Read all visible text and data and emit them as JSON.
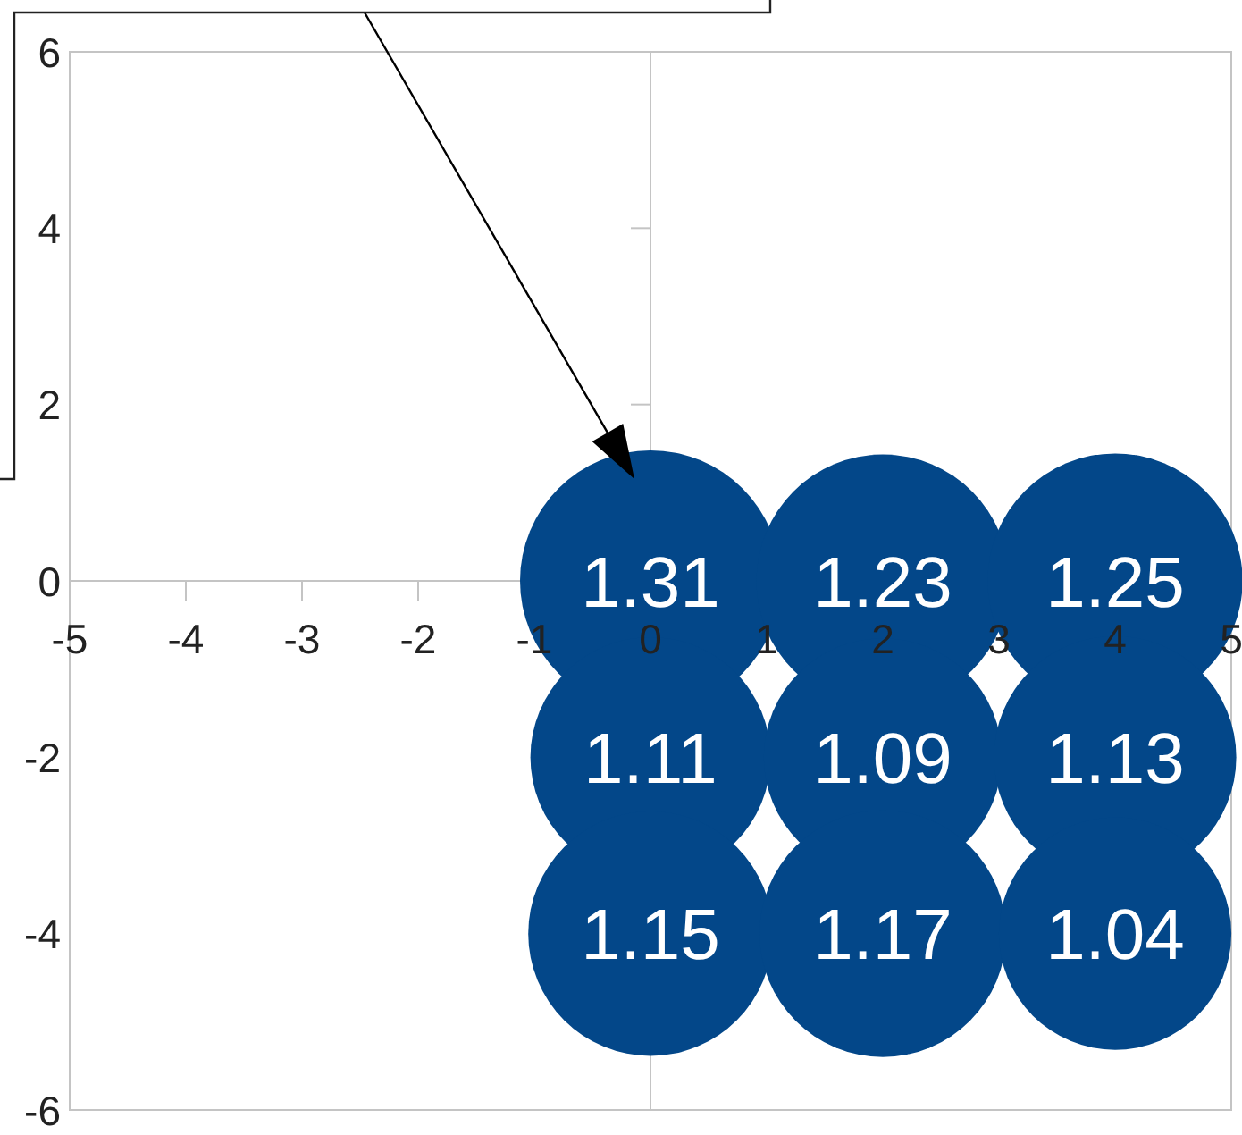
{
  "chart_data": {
    "type": "bubble",
    "x": [
      0,
      2,
      4,
      0,
      2,
      4,
      0,
      2,
      4
    ],
    "values": [
      0,
      0,
      0,
      -2,
      -2,
      -2,
      -4,
      -4,
      -4
    ],
    "sizes": [
      1.31,
      1.23,
      1.25,
      1.11,
      1.09,
      1.13,
      1.15,
      1.17,
      1.04
    ],
    "value_labels": [
      "1.31",
      "1.23",
      "1.25",
      "1.11",
      "1.09",
      "1.13",
      "1.15",
      "1.17",
      "1.04"
    ],
    "color": "#034789",
    "xlim": [
      -5,
      5
    ],
    "ylim": [
      -6,
      6
    ],
    "xticks": [
      -5,
      -4,
      -3,
      -2,
      -1,
      0,
      1,
      2,
      3,
      4,
      5
    ],
    "yticks": [
      -6,
      -4,
      -2,
      0,
      2,
      4,
      6
    ]
  }
}
